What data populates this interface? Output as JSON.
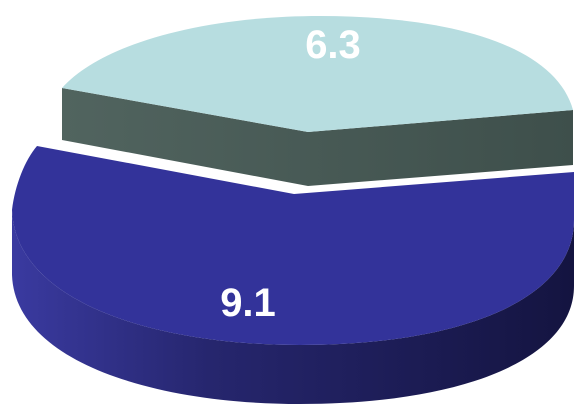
{
  "chart_data": {
    "type": "pie",
    "three_d": true,
    "exploded": true,
    "slices": [
      {
        "label": "6.3",
        "value": 6.3,
        "top_color": "#b7dde0",
        "side_color": "#4a5d5a"
      },
      {
        "label": "9.1",
        "value": 9.1,
        "top_color": "#33339a",
        "side_color": "#1c1c5a"
      }
    ],
    "legend": "none",
    "title": "",
    "ylabel": ""
  }
}
